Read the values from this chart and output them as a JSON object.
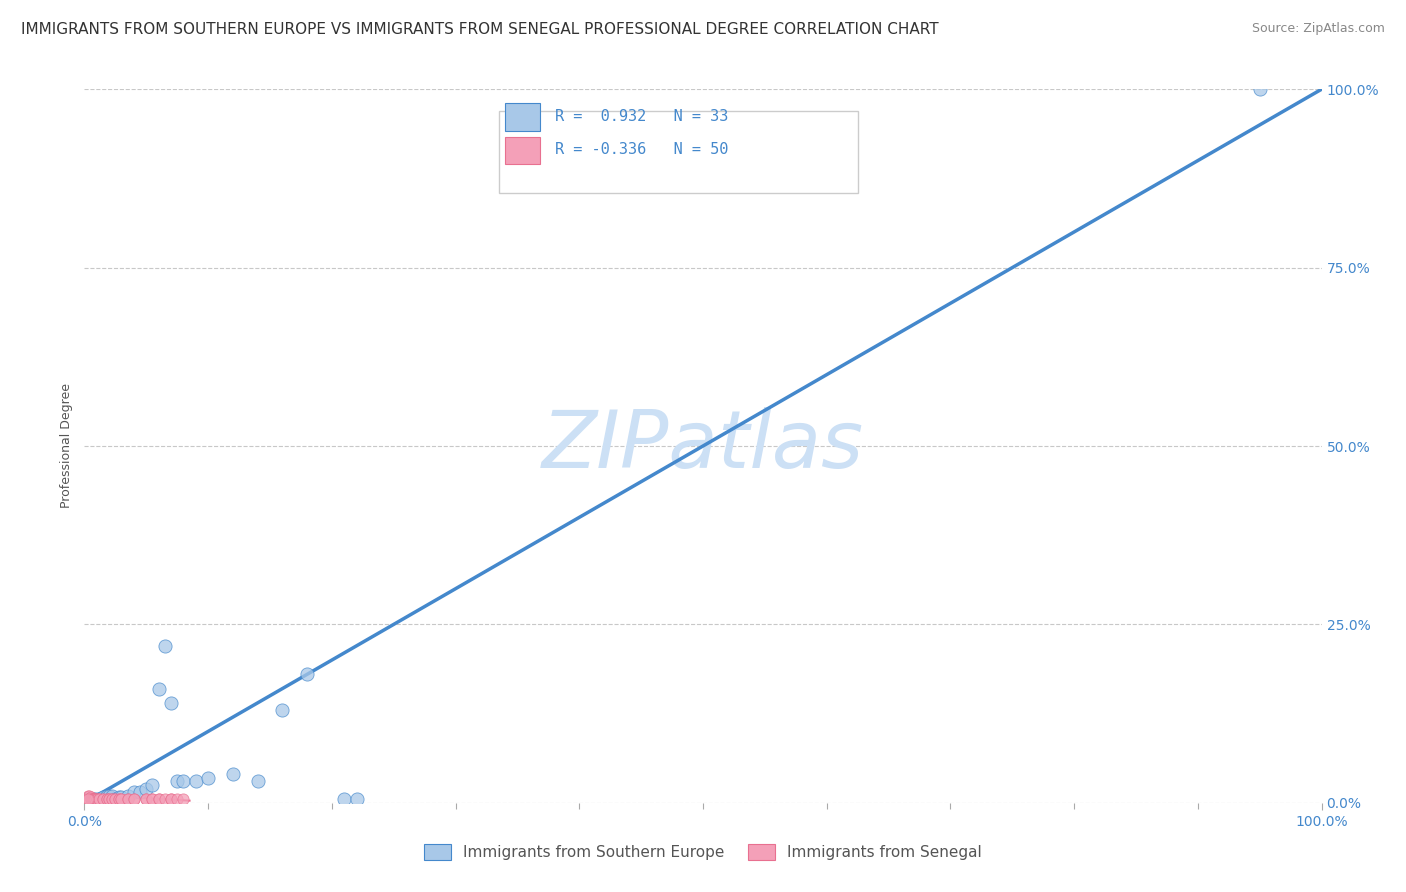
{
  "title": "IMMIGRANTS FROM SOUTHERN EUROPE VS IMMIGRANTS FROM SENEGAL PROFESSIONAL DEGREE CORRELATION CHART",
  "source": "Source: ZipAtlas.com",
  "ylabel": "Professional Degree",
  "xlim": [
    0,
    1.0
  ],
  "ylim": [
    0,
    1.0
  ],
  "xtick_positions": [
    0.0,
    1.0
  ],
  "xtick_labels": [
    "0.0%",
    "100.0%"
  ],
  "ytick_positions": [
    0.0,
    0.25,
    0.5,
    0.75,
    1.0
  ],
  "ytick_labels": [
    "0.0%",
    "25.0%",
    "50.0%",
    "75.0%",
    "100.0%"
  ],
  "r_blue": 0.932,
  "n_blue": 33,
  "r_pink": -0.336,
  "n_pink": 50,
  "blue_color": "#a8c8e8",
  "pink_color": "#f4a0b8",
  "line_color": "#4488cc",
  "pink_line_color": "#e87090",
  "watermark": "ZIPatlas",
  "watermark_color": "#cce0f5",
  "blue_scatter_x": [
    0.005,
    0.007,
    0.008,
    0.01,
    0.012,
    0.015,
    0.018,
    0.02,
    0.022,
    0.025,
    0.028,
    0.03,
    0.035,
    0.04,
    0.045,
    0.05,
    0.055,
    0.06,
    0.065,
    0.07,
    0.075,
    0.08,
    0.09,
    0.1,
    0.12,
    0.14,
    0.16,
    0.18,
    0.21,
    0.22,
    0.003,
    0.005,
    0.95
  ],
  "blue_scatter_y": [
    0.005,
    0.005,
    0.005,
    0.005,
    0.005,
    0.008,
    0.01,
    0.01,
    0.01,
    0.005,
    0.008,
    0.008,
    0.01,
    0.015,
    0.015,
    0.02,
    0.025,
    0.16,
    0.22,
    0.14,
    0.03,
    0.03,
    0.03,
    0.035,
    0.04,
    0.03,
    0.13,
    0.18,
    0.005,
    0.005,
    0.005,
    0.005,
    1.0
  ],
  "pink_scatter_x": [
    0.002,
    0.003,
    0.003,
    0.004,
    0.004,
    0.005,
    0.005,
    0.005,
    0.006,
    0.006,
    0.007,
    0.007,
    0.008,
    0.008,
    0.009,
    0.009,
    0.01,
    0.01,
    0.012,
    0.012,
    0.015,
    0.015,
    0.018,
    0.018,
    0.02,
    0.02,
    0.022,
    0.022,
    0.025,
    0.025,
    0.028,
    0.028,
    0.03,
    0.03,
    0.035,
    0.035,
    0.04,
    0.04,
    0.05,
    0.05,
    0.055,
    0.055,
    0.06,
    0.06,
    0.065,
    0.07,
    0.07,
    0.075,
    0.08,
    0.003
  ],
  "pink_scatter_y": [
    0.005,
    0.01,
    0.005,
    0.01,
    0.005,
    0.005,
    0.008,
    0.005,
    0.005,
    0.005,
    0.005,
    0.005,
    0.005,
    0.005,
    0.005,
    0.005,
    0.005,
    0.005,
    0.005,
    0.005,
    0.005,
    0.005,
    0.005,
    0.005,
    0.005,
    0.005,
    0.005,
    0.005,
    0.005,
    0.005,
    0.005,
    0.005,
    0.005,
    0.005,
    0.005,
    0.005,
    0.005,
    0.005,
    0.005,
    0.005,
    0.005,
    0.005,
    0.005,
    0.005,
    0.005,
    0.005,
    0.005,
    0.005,
    0.005,
    0.005
  ],
  "blue_line_x": [
    0.0,
    1.0
  ],
  "blue_line_y": [
    0.0,
    1.0
  ],
  "pink_line_x": [
    0.0,
    0.085
  ],
  "pink_line_y": [
    0.012,
    0.003
  ],
  "background_color": "#ffffff",
  "grid_color": "#c8c8c8",
  "title_fontsize": 11,
  "axis_label_fontsize": 9,
  "tick_fontsize": 10,
  "source_fontsize": 9,
  "legend_label_blue": "Immigrants from Southern Europe",
  "legend_label_pink": "Immigrants from Senegal"
}
